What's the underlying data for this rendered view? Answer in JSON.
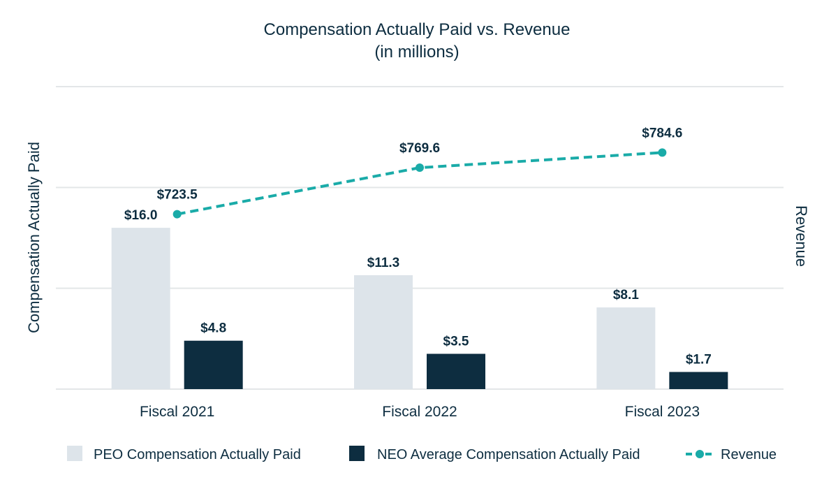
{
  "chart_data": {
    "type": "bar",
    "title": "Compensation Actually Paid vs. Revenue",
    "subtitle": "(in millions)",
    "ylabel": "Compensation Actually Paid",
    "y2label": "Revenue",
    "categories": [
      "Fiscal 2021",
      "Fiscal 2022",
      "Fiscal 2023"
    ],
    "series": [
      {
        "name": "PEO Compensation Actually Paid",
        "type": "bar",
        "axis": "left",
        "color": "#dde4ea",
        "values": [
          16.0,
          11.3,
          8.1
        ],
        "labels": [
          "$16.0",
          "$11.3",
          "$8.1"
        ]
      },
      {
        "name": "NEO Average Compensation Actually Paid",
        "type": "bar",
        "axis": "left",
        "color": "#0d2d40",
        "values": [
          4.8,
          3.5,
          1.7
        ],
        "labels": [
          "$4.8",
          "$3.5",
          "$1.7"
        ]
      },
      {
        "name": "Revenue",
        "type": "line",
        "style": "dashed",
        "axis": "right",
        "color": "#1aaba8",
        "values": [
          723.5,
          769.6,
          784.6
        ],
        "labels": [
          "$723.5",
          "$769.6",
          "$784.6"
        ]
      }
    ],
    "ylim": [
      0,
      30
    ],
    "y2lim": [
      550,
      850
    ],
    "grid": true,
    "legend": "bottom"
  }
}
